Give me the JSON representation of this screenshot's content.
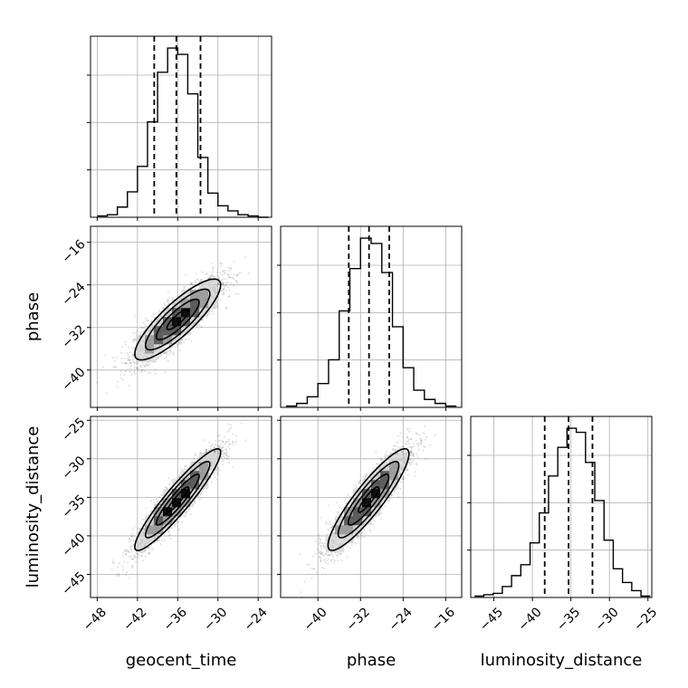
{
  "chart_data": {
    "type": "corner",
    "parameters": [
      "geocent_time",
      "phase",
      "luminosity_distance"
    ],
    "axis_labels": {
      "geocent_time": "geocent_time",
      "phase": "phase",
      "luminosity_distance": "luminosity_distance"
    },
    "ranges": {
      "geocent_time": [
        -49,
        -22
      ],
      "phase": [
        -47,
        -13
      ],
      "luminosity_distance": [
        -48,
        -24.5
      ]
    },
    "ticks": {
      "geocent_time": [
        -48,
        -42,
        -36,
        -30,
        -24
      ],
      "phase": [
        -40,
        -32,
        -24,
        -16
      ],
      "luminosity_distance": [
        -45,
        -40,
        -35,
        -30,
        -25
      ]
    },
    "tick_labels": {
      "geocent_time": [
        "−48",
        "−42",
        "−36",
        "−30",
        "−24"
      ],
      "phase": [
        "−40",
        "−32",
        "−24",
        "−16"
      ],
      "luminosity_distance": [
        "−45",
        "−40",
        "−35",
        "−30",
        "−25"
      ]
    },
    "histograms": {
      "geocent_time": {
        "bin_edges": [
          -48,
          -46.5,
          -45,
          -43.5,
          -42,
          -40.5,
          -39,
          -37.5,
          -36,
          -34.5,
          -33,
          -31.5,
          -30,
          -28.5,
          -27,
          -25.5,
          -24,
          -22.5
        ],
        "counts": [
          1,
          2,
          8,
          20,
          40,
          75,
          114,
          133,
          128,
          97,
          47,
          19,
          9,
          5,
          2,
          1,
          0
        ]
      },
      "phase": {
        "bin_edges": [
          -46,
          -44,
          -42,
          -40,
          -38,
          -36,
          -34,
          -32,
          -30,
          -28,
          -26,
          -24,
          -22,
          -20,
          -18,
          -16,
          -14
        ],
        "counts": [
          1,
          3,
          8,
          18,
          36,
          73,
          105,
          128,
          124,
          102,
          61,
          30,
          13,
          6,
          3,
          1
        ]
      },
      "luminosity_distance": {
        "bin_edges": [
          -47.5,
          -46.3,
          -45.1,
          -43.9,
          -42.7,
          -41.5,
          -40.3,
          -39.1,
          -37.9,
          -36.7,
          -35.5,
          -34.3,
          -33.1,
          -31.9,
          -30.7,
          -29.5,
          -28.3,
          -27.1,
          -25.9,
          -24.7
        ],
        "counts": [
          1,
          2,
          3,
          8,
          16,
          24,
          40,
          62,
          89,
          110,
          124,
          121,
          99,
          71,
          42,
          21,
          11,
          5,
          1
        ]
      }
    },
    "quantiles": {
      "geocent_time": [
        -39.5,
        -36.2,
        -32.6
      ],
      "phase": [
        -34.2,
        -30.4,
        -26.6
      ],
      "luminosity_distance": [
        -38.4,
        -35.3,
        -32.2
      ]
    },
    "joint": [
      {
        "x": "geocent_time",
        "y": "phase",
        "mean": [
          -36,
          -30.5
        ],
        "std": [
          3.2,
          3.8
        ],
        "correlation": 0.85
      },
      {
        "x": "geocent_time",
        "y": "luminosity_distance",
        "mean": [
          -36,
          -35.3
        ],
        "std": [
          3.2,
          3.3
        ],
        "correlation": 0.93
      },
      {
        "x": "phase",
        "y": "luminosity_distance",
        "mean": [
          -30.5,
          -35.3
        ],
        "std": [
          3.8,
          3.3
        ],
        "correlation": 0.9
      }
    ],
    "contour_sigma_levels": [
      0.5,
      1.0,
      1.5,
      2.0
    ],
    "grid": true
  }
}
